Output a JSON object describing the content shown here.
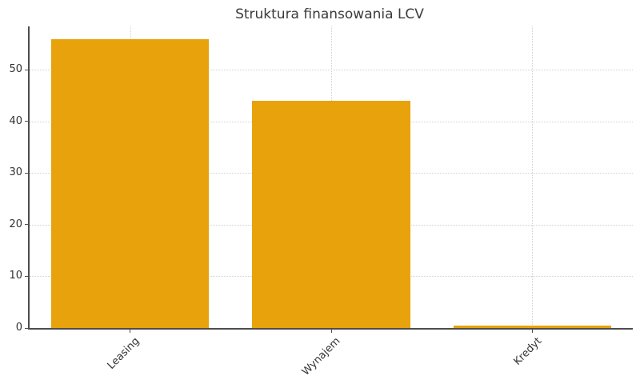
{
  "title": "Struktura finansowania LCV",
  "colors": {
    "background": "#ffffff",
    "bar": "#e8a20c",
    "axis": "#4d4d4d",
    "grid": "#d0d0d0",
    "tick_label": "#333333",
    "title": "#3a3a3a"
  },
  "chart_data": {
    "type": "bar",
    "title": "Struktura finansowania LCV",
    "categories": [
      "Leasing",
      "Wynajem",
      "Kredyt"
    ],
    "values": [
      56,
      44,
      0.5
    ],
    "xlabel": "",
    "ylabel": "",
    "ylim": [
      0,
      58.4
    ],
    "yticks": [
      0,
      10,
      20,
      30,
      40,
      50
    ],
    "grid": "dotted horizontal and vertical gridlines",
    "legend_position": "none",
    "bar_color": "#e8a20c",
    "bar_width_fraction": 0.785,
    "xtick_rotation_deg": 45
  }
}
